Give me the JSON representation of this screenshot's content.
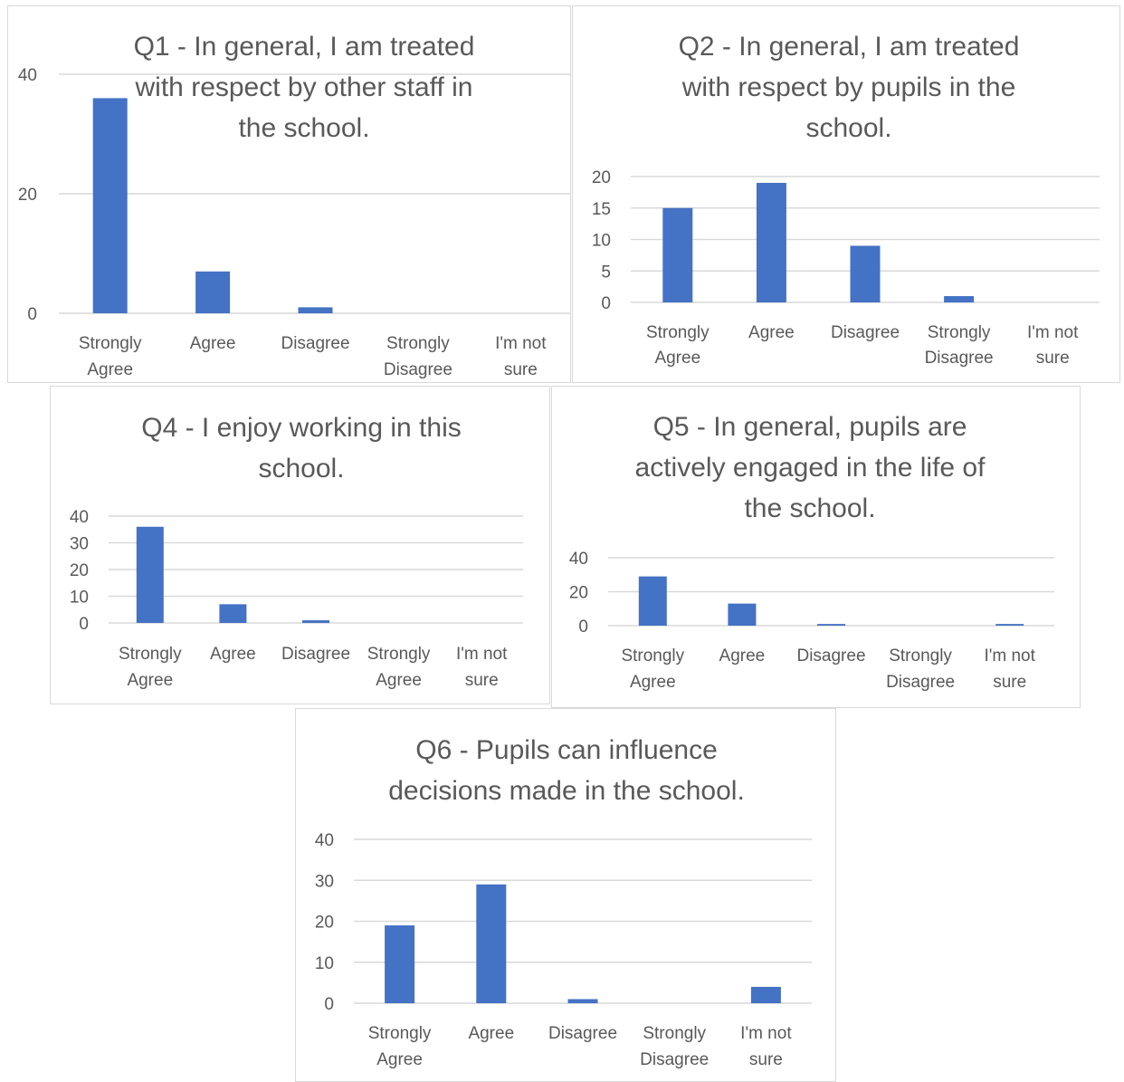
{
  "chart_data": [
    {
      "id": "q1",
      "type": "bar",
      "title_lines": [
        "Q1 - In general, I am treated",
        "with respect by other staff in",
        "the school."
      ],
      "categories": [
        [
          "Strongly",
          "Agree"
        ],
        [
          "Agree"
        ],
        [
          "Disagree"
        ],
        [
          "Strongly",
          "Disagree"
        ],
        [
          "I'm not",
          "sure"
        ]
      ],
      "values": [
        36,
        7,
        1,
        0,
        0
      ],
      "ylim": [
        0,
        40
      ],
      "yticks": [
        0,
        20,
        40
      ],
      "grid": true,
      "color": "#4472c4"
    },
    {
      "id": "q2",
      "type": "bar",
      "title_lines": [
        "Q2 - In general, I am treated",
        "with respect by pupils in the",
        "school."
      ],
      "categories": [
        [
          "Strongly",
          "Agree"
        ],
        [
          "Agree"
        ],
        [
          "Disagree"
        ],
        [
          "Strongly",
          "Disagree"
        ],
        [
          "I'm not",
          "sure"
        ]
      ],
      "values": [
        15,
        19,
        9,
        1,
        0
      ],
      "ylim": [
        0,
        20
      ],
      "yticks": [
        0,
        5,
        10,
        15,
        20
      ],
      "grid": true,
      "color": "#4472c4"
    },
    {
      "id": "q4",
      "type": "bar",
      "title_lines": [
        "Q4 - I enjoy working in this",
        "school."
      ],
      "categories": [
        [
          "Strongly",
          "Agree"
        ],
        [
          "Agree"
        ],
        [
          "Disagree"
        ],
        [
          "Strongly",
          "Agree"
        ],
        [
          "I'm not",
          "sure"
        ]
      ],
      "values": [
        36,
        7,
        1,
        0,
        0
      ],
      "ylim": [
        0,
        40
      ],
      "yticks": [
        0,
        10,
        20,
        30,
        40
      ],
      "grid": true,
      "color": "#4472c4"
    },
    {
      "id": "q5",
      "type": "bar",
      "title_lines": [
        "Q5 - In general, pupils are",
        "actively engaged in the life of",
        "the school."
      ],
      "categories": [
        [
          "Strongly",
          "Agree"
        ],
        [
          "Agree"
        ],
        [
          "Disagree"
        ],
        [
          "Strongly",
          "Disagree"
        ],
        [
          "I'm not",
          "sure"
        ]
      ],
      "values": [
        29,
        13,
        1,
        0,
        1
      ],
      "ylim": [
        0,
        40
      ],
      "yticks": [
        0,
        20,
        40
      ],
      "grid": true,
      "color": "#4472c4"
    },
    {
      "id": "q6",
      "type": "bar",
      "title_lines": [
        "Q6 - Pupils can influence",
        "decisions made in the school."
      ],
      "categories": [
        [
          "Strongly",
          "Agree"
        ],
        [
          "Agree"
        ],
        [
          "Disagree"
        ],
        [
          "Strongly",
          "Disagree"
        ],
        [
          "I'm not",
          "sure"
        ]
      ],
      "values": [
        19,
        29,
        1,
        0,
        4
      ],
      "ylim": [
        0,
        40
      ],
      "yticks": [
        0,
        10,
        20,
        30,
        40
      ],
      "grid": true,
      "color": "#4472c4"
    }
  ]
}
